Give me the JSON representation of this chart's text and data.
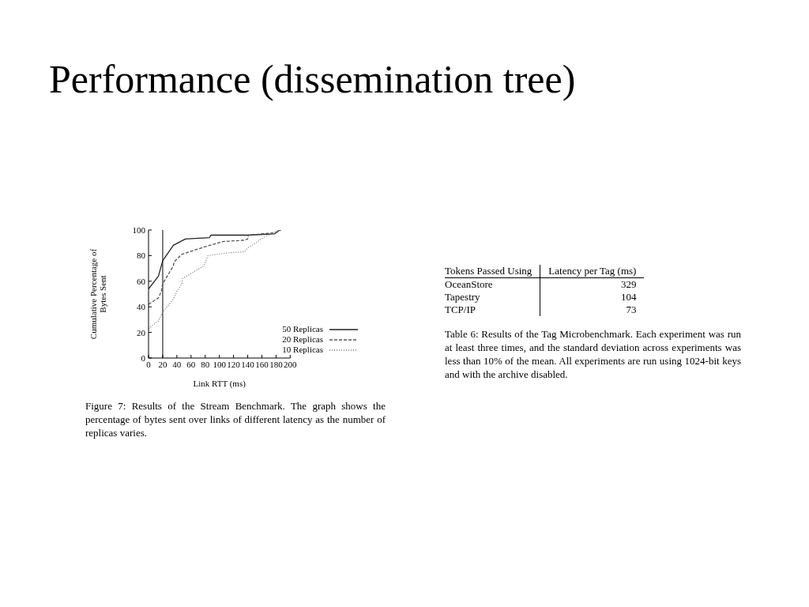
{
  "chart_data": [
    {
      "type": "line",
      "title": "Performance (dissemination tree)",
      "xlabel": "Link RTT (ms)",
      "ylabel": "Cumulative Percentage of Bytes Sent",
      "xlim": [
        0,
        200
      ],
      "xticks": [
        0,
        20,
        40,
        60,
        80,
        100,
        120,
        140,
        160,
        180,
        200
      ],
      "ylim": [
        0,
        100
      ],
      "yticks": [
        0,
        20,
        40,
        60,
        80,
        100
      ],
      "grid": false,
      "legend": "bottom right",
      "marker": "none",
      "series": [
        {
          "name": "50 Replicas",
          "color": "#222222",
          "line_style": "solid",
          "x": [
            0,
            14,
            20,
            35,
            52,
            86,
            88,
            140,
            178,
            185
          ],
          "values": [
            54,
            64,
            76,
            88,
            93,
            94,
            96,
            96,
            97,
            100
          ]
        },
        {
          "name": "20 Replicas",
          "color": "#555555",
          "line_style": "dashed",
          "x": [
            0,
            14,
            18,
            20,
            35,
            36,
            47,
            80,
            105,
            135,
            140,
            141,
            180,
            187
          ],
          "values": [
            42,
            47,
            52,
            58,
            72,
            75,
            81,
            87,
            91,
            92,
            93,
            96,
            98,
            100
          ]
        },
        {
          "name": "10 Replicas",
          "color": "#777777",
          "line_style": "dotted",
          "x": [
            0,
            14,
            20,
            35,
            40,
            47,
            48,
            78,
            84,
            110,
            135,
            140,
            165,
            180,
            187
          ],
          "values": [
            23,
            29,
            36,
            46,
            52,
            58,
            62,
            72,
            80,
            82,
            83,
            86,
            95,
            99,
            100
          ]
        }
      ],
      "ref_lines": [
        {
          "axis": "x",
          "value": 20,
          "color": "#555555"
        }
      ],
      "annotations": [
        "Figure 7: Results of the Stream Benchmark. The graph shows the percentage of bytes sent over links of different latency as the number of replicas varies."
      ]
    },
    {
      "type": "other",
      "xlabel": "Tokens Passed Using",
      "ylabel": "Latency per Tag (ms)",
      "categories": [
        "OceanStore",
        "Tapestry",
        "TCP/IP"
      ],
      "values": [
        329,
        104,
        73
      ],
      "data_labels": true,
      "annotations": [
        "Table 6: Results of the Tag Microbenchmark. Each experiment was run at least three times, and the standard deviation across experiments was less than 10% of the mean. All experiments are run using 1024-bit keys and with the archive disabled."
      ]
    }
  ]
}
